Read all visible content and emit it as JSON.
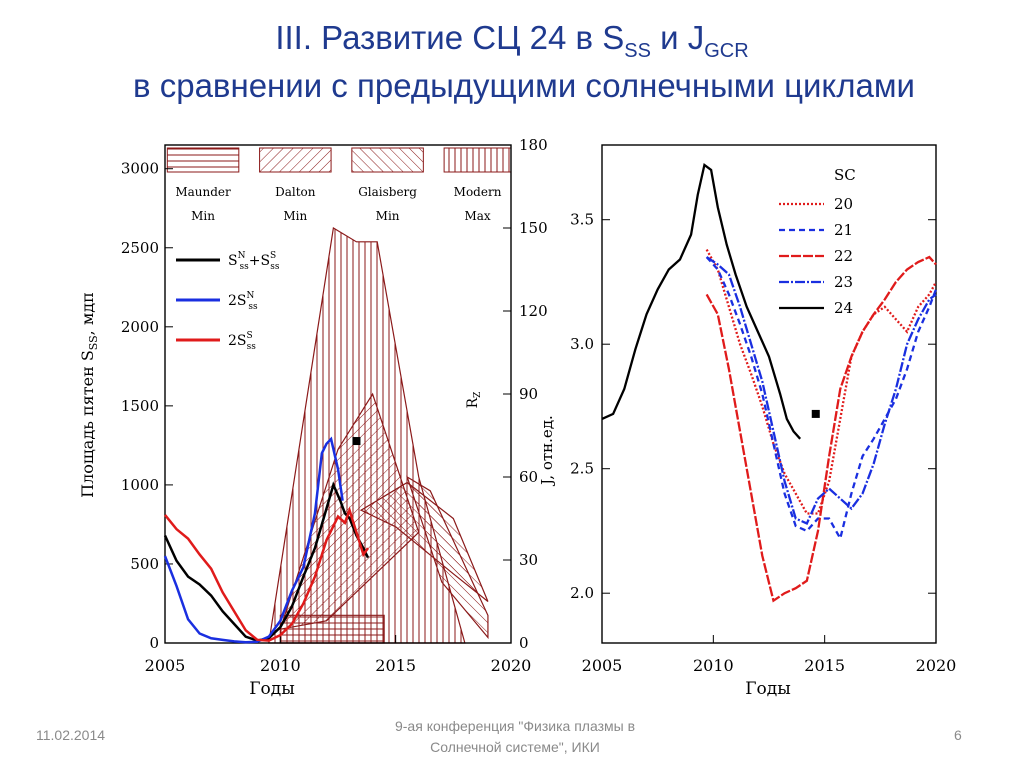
{
  "header": {
    "line1_pre": "III. Развитие СЦ 24 в S",
    "line1_sub1": "SS",
    "line1_mid": " и J",
    "line1_sub2": "GCR",
    "line2": "в сравнении с предыдущими солнечными циклами"
  },
  "footer": {
    "date": "11.02.2014",
    "conf_line1": "9-ая конференция \"Физика плазмы в",
    "conf_line2": "Солнечной системе\", ИКИ",
    "page": "6"
  },
  "colors": {
    "title": "#1f3a8f",
    "black": "#000000",
    "blue": "#1a2fe0",
    "red": "#e01b1b",
    "maroon": "#8b1a1a"
  },
  "chart_data": [
    {
      "type": "line",
      "xlabel": "Годы",
      "ylabel": "Площадь пятен S",
      "ylabel_sub": "SS",
      "ylabel_unit": ", мдп",
      "y2label": "J,  отн.ед.",
      "r_label": "R",
      "r_label_sub": "Z",
      "xlim": [
        2005,
        2020
      ],
      "ylim": [
        0,
        3150
      ],
      "y2lim": [
        0,
        180
      ],
      "xticks": [
        "2005",
        "2010",
        "2015",
        "2020"
      ],
      "yticks": [
        "0",
        "500",
        "1000",
        "1500",
        "2000",
        "2500",
        "3000"
      ],
      "y2ticks": [
        "0",
        "30",
        "60",
        "90",
        "120",
        "150",
        "180"
      ],
      "grand_minima": [
        {
          "name1": "Maunder",
          "name2": "Min",
          "x": [
            2005.1,
            2008.2
          ]
        },
        {
          "name1": "Dalton",
          "name2": "Min",
          "x": [
            2009.1,
            2012.2
          ]
        },
        {
          "name1": "Glaisberg",
          "name2": "Min",
          "x": [
            2013.1,
            2016.2
          ]
        },
        {
          "name1": "Modern",
          "name2": "Max",
          "x": [
            2017.1,
            2020.0
          ]
        }
      ],
      "legend": [
        {
          "label": "S",
          "sup1": "N",
          "sub1": "ss",
          "mid": "+S",
          "sup2": "S",
          "sub2": "ss",
          "color": "#000000"
        },
        {
          "label": "2S",
          "sup1": "N",
          "sub1": "ss",
          "color": "#1a2fe0"
        },
        {
          "label": "2S",
          "sup1": "S",
          "sub1": "ss",
          "color": "#e01b1b"
        }
      ],
      "series": [
        {
          "color": "#000000",
          "x": [
            2005.0,
            2005.5,
            2006.0,
            2006.5,
            2007.0,
            2007.5,
            2008.0,
            2008.5,
            2009.0,
            2009.5,
            2010.0,
            2010.5,
            2011.0,
            2011.5,
            2012.0,
            2012.3,
            2012.6,
            2012.8,
            2013.0,
            2013.3,
            2013.6,
            2013.8
          ],
          "y": [
            680,
            520,
            420,
            370,
            300,
            200,
            120,
            40,
            15,
            30,
            100,
            230,
            420,
            600,
            850,
            1000,
            900,
            820,
            790,
            680,
            600,
            540
          ]
        },
        {
          "color": "#1a2fe0",
          "x": [
            2005.0,
            2005.5,
            2006.0,
            2006.5,
            2007.0,
            2007.5,
            2008.0,
            2008.5,
            2009.0,
            2009.5,
            2010.0,
            2010.5,
            2011.0,
            2011.5,
            2011.8,
            2012.0,
            2012.2,
            2012.5,
            2012.7
          ],
          "y": [
            550,
            360,
            150,
            60,
            30,
            20,
            10,
            5,
            8,
            40,
            140,
            330,
            480,
            820,
            1200,
            1260,
            1290,
            1100,
            900
          ]
        },
        {
          "color": "#e01b1b",
          "x": [
            2005.0,
            2005.5,
            2006.0,
            2006.5,
            2007.0,
            2007.5,
            2008.0,
            2008.5,
            2009.0,
            2009.5,
            2010.0,
            2010.5,
            2011.0,
            2011.5,
            2012.0,
            2012.5,
            2012.8,
            2013.0,
            2013.3,
            2013.6,
            2013.8
          ],
          "y": [
            810,
            720,
            660,
            560,
            470,
            320,
            200,
            80,
            20,
            15,
            50,
            120,
            250,
            420,
            650,
            800,
            760,
            840,
            700,
            560,
            600
          ]
        }
      ],
      "marker": {
        "x": 2013.3,
        "y2": 73
      }
    },
    {
      "type": "line",
      "xlabel": "Годы",
      "xlim": [
        2005,
        2020
      ],
      "ylim": [
        1.8,
        3.8
      ],
      "xticks": [
        "2005",
        "2010",
        "2015",
        "2020"
      ],
      "yticks": [
        "2.0",
        "2.5",
        "3.0",
        "3.5"
      ],
      "legend_title": "SC",
      "series": [
        {
          "name": "20",
          "color": "#e01b1b",
          "dash": "2,2",
          "x": [
            2009.7,
            2010.2,
            2010.7,
            2011.2,
            2011.7,
            2012.2,
            2012.7,
            2013.2,
            2013.7,
            2014.2,
            2014.7,
            2015.2,
            2015.7,
            2016.2,
            2016.7,
            2017.2,
            2017.7,
            2018.2,
            2018.7,
            2019.2,
            2019.7,
            2020.0
          ],
          "y": [
            3.38,
            3.3,
            3.15,
            3.0,
            2.88,
            2.75,
            2.6,
            2.48,
            2.4,
            2.32,
            2.32,
            2.45,
            2.7,
            2.95,
            3.05,
            3.12,
            3.15,
            3.1,
            3.05,
            3.15,
            3.2,
            3.25
          ]
        },
        {
          "name": "21",
          "color": "#1a2fe0",
          "dash": "6,4",
          "x": [
            2009.7,
            2010.2,
            2010.7,
            2011.2,
            2011.7,
            2012.2,
            2012.7,
            2013.2,
            2013.7,
            2014.2,
            2014.7,
            2015.2,
            2015.7,
            2016.2,
            2016.7,
            2017.2,
            2017.7,
            2018.2,
            2018.7,
            2019.2,
            2019.7,
            2020.0
          ],
          "y": [
            3.35,
            3.3,
            3.2,
            3.08,
            2.95,
            2.8,
            2.6,
            2.4,
            2.27,
            2.25,
            2.3,
            2.3,
            2.22,
            2.4,
            2.55,
            2.62,
            2.7,
            2.78,
            2.9,
            3.05,
            3.15,
            3.22
          ]
        },
        {
          "name": "22",
          "color": "#e01b1b",
          "dash": "10,2",
          "x": [
            2009.7,
            2010.2,
            2010.7,
            2011.2,
            2011.7,
            2012.2,
            2012.7,
            2013.2,
            2013.7,
            2014.2,
            2014.7,
            2015.2,
            2015.7,
            2016.2,
            2016.7,
            2017.2,
            2017.7,
            2018.2,
            2018.7,
            2019.2,
            2019.7,
            2020.0
          ],
          "y": [
            3.2,
            3.12,
            2.9,
            2.65,
            2.4,
            2.15,
            1.97,
            2.0,
            2.02,
            2.05,
            2.25,
            2.55,
            2.82,
            2.95,
            3.05,
            3.12,
            3.18,
            3.25,
            3.3,
            3.33,
            3.35,
            3.32
          ]
        },
        {
          "name": "23",
          "color": "#1a2fe0",
          "dash": "10,2,2,2",
          "x": [
            2009.7,
            2010.2,
            2010.7,
            2011.2,
            2011.7,
            2012.2,
            2012.7,
            2013.2,
            2013.7,
            2014.2,
            2014.7,
            2015.2,
            2015.7,
            2016.2,
            2016.7,
            2017.2,
            2017.7,
            2018.2,
            2018.7,
            2019.2,
            2019.7,
            2020.0
          ],
          "y": [
            3.35,
            3.32,
            3.28,
            3.15,
            3.0,
            2.85,
            2.65,
            2.45,
            2.3,
            2.28,
            2.38,
            2.42,
            2.38,
            2.34,
            2.4,
            2.52,
            2.68,
            2.82,
            3.0,
            3.1,
            3.18,
            3.2
          ]
        },
        {
          "name": "24",
          "color": "#000000",
          "dash": "",
          "x": [
            2005.0,
            2005.5,
            2006.0,
            2006.5,
            2007.0,
            2007.5,
            2008.0,
            2008.5,
            2009.0,
            2009.3,
            2009.6,
            2009.9,
            2010.2,
            2010.6,
            2011.0,
            2011.5,
            2012.0,
            2012.5,
            2013.0,
            2013.3,
            2013.6,
            2013.9
          ],
          "y": [
            2.7,
            2.72,
            2.82,
            2.98,
            3.12,
            3.22,
            3.3,
            3.34,
            3.44,
            3.6,
            3.72,
            3.7,
            3.55,
            3.4,
            3.28,
            3.15,
            3.05,
            2.95,
            2.8,
            2.7,
            2.65,
            2.62
          ]
        }
      ],
      "marker": {
        "x": 2014.6,
        "y": 2.72
      }
    }
  ]
}
